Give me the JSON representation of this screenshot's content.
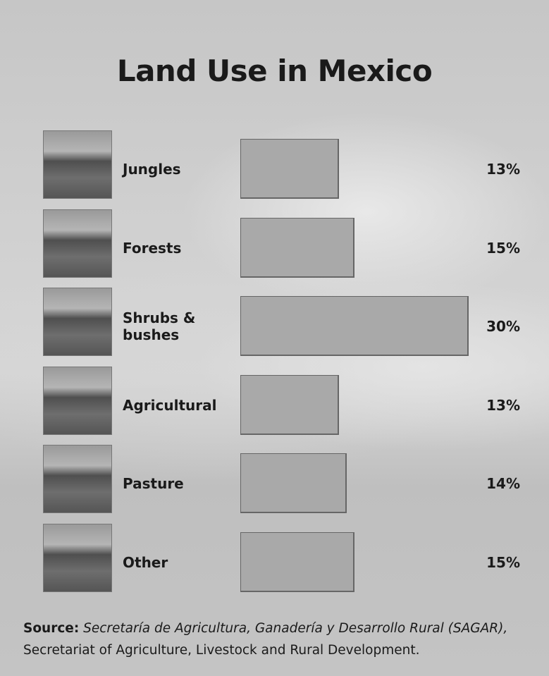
{
  "chart_data": {
    "type": "bar",
    "orientation": "horizontal",
    "title": "Land Use in Mexico",
    "categories": [
      "Jungles",
      "Forests",
      "Shrubs & bushes",
      "Agricultural",
      "Pasture",
      "Other"
    ],
    "values": [
      13,
      15,
      30,
      13,
      14,
      15
    ],
    "value_labels": [
      "13%",
      "15%",
      "30%",
      "13%",
      "14%",
      "15%"
    ],
    "color": "#a9a9a9",
    "source": {
      "label": "Source:",
      "agency": "Secretaría de Agricultura, Ganadería y Desarrollo Rural (SAGAR),",
      "translation": "Secretariat of Agriculture, Livestock and Rural Development."
    }
  }
}
